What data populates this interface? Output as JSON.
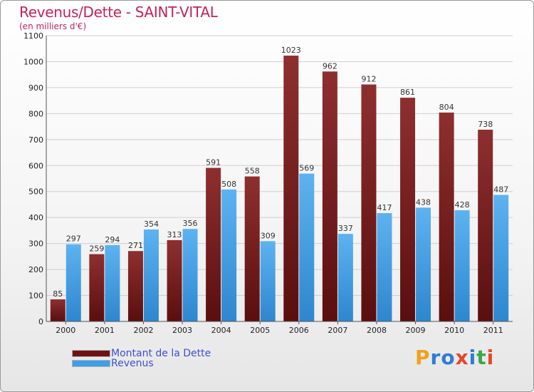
{
  "header": {
    "title": "Revenus/Dette - SAINT-VITAL",
    "subtitle": "(en milliers d'€)"
  },
  "legend": [
    {
      "label": "Montant de la Dette",
      "color": "#7a1d1d"
    },
    {
      "label": "Revenus",
      "color": "#3f9fe6"
    }
  ],
  "logo": {
    "text": "Proxiti"
  },
  "chart_data": {
    "type": "bar",
    "categories": [
      "2000",
      "2001",
      "2002",
      "2003",
      "2004",
      "2005",
      "2006",
      "2007",
      "2008",
      "2009",
      "2010",
      "2011"
    ],
    "series": [
      {
        "name": "Montant de la Dette",
        "color": "#7a1d1d",
        "values": [
          85,
          259,
          271,
          313,
          591,
          558,
          1023,
          962,
          912,
          861,
          804,
          738
        ]
      },
      {
        "name": "Revenus",
        "color": "#3f9fe6",
        "values": [
          297,
          294,
          354,
          356,
          508,
          309,
          569,
          337,
          417,
          438,
          428,
          487
        ]
      }
    ],
    "ylim": [
      0,
      1100
    ],
    "yticks": [
      0,
      100,
      200,
      300,
      400,
      500,
      600,
      700,
      800,
      900,
      1000,
      1100
    ],
    "grid": true,
    "legend_position": "bottom-left"
  }
}
